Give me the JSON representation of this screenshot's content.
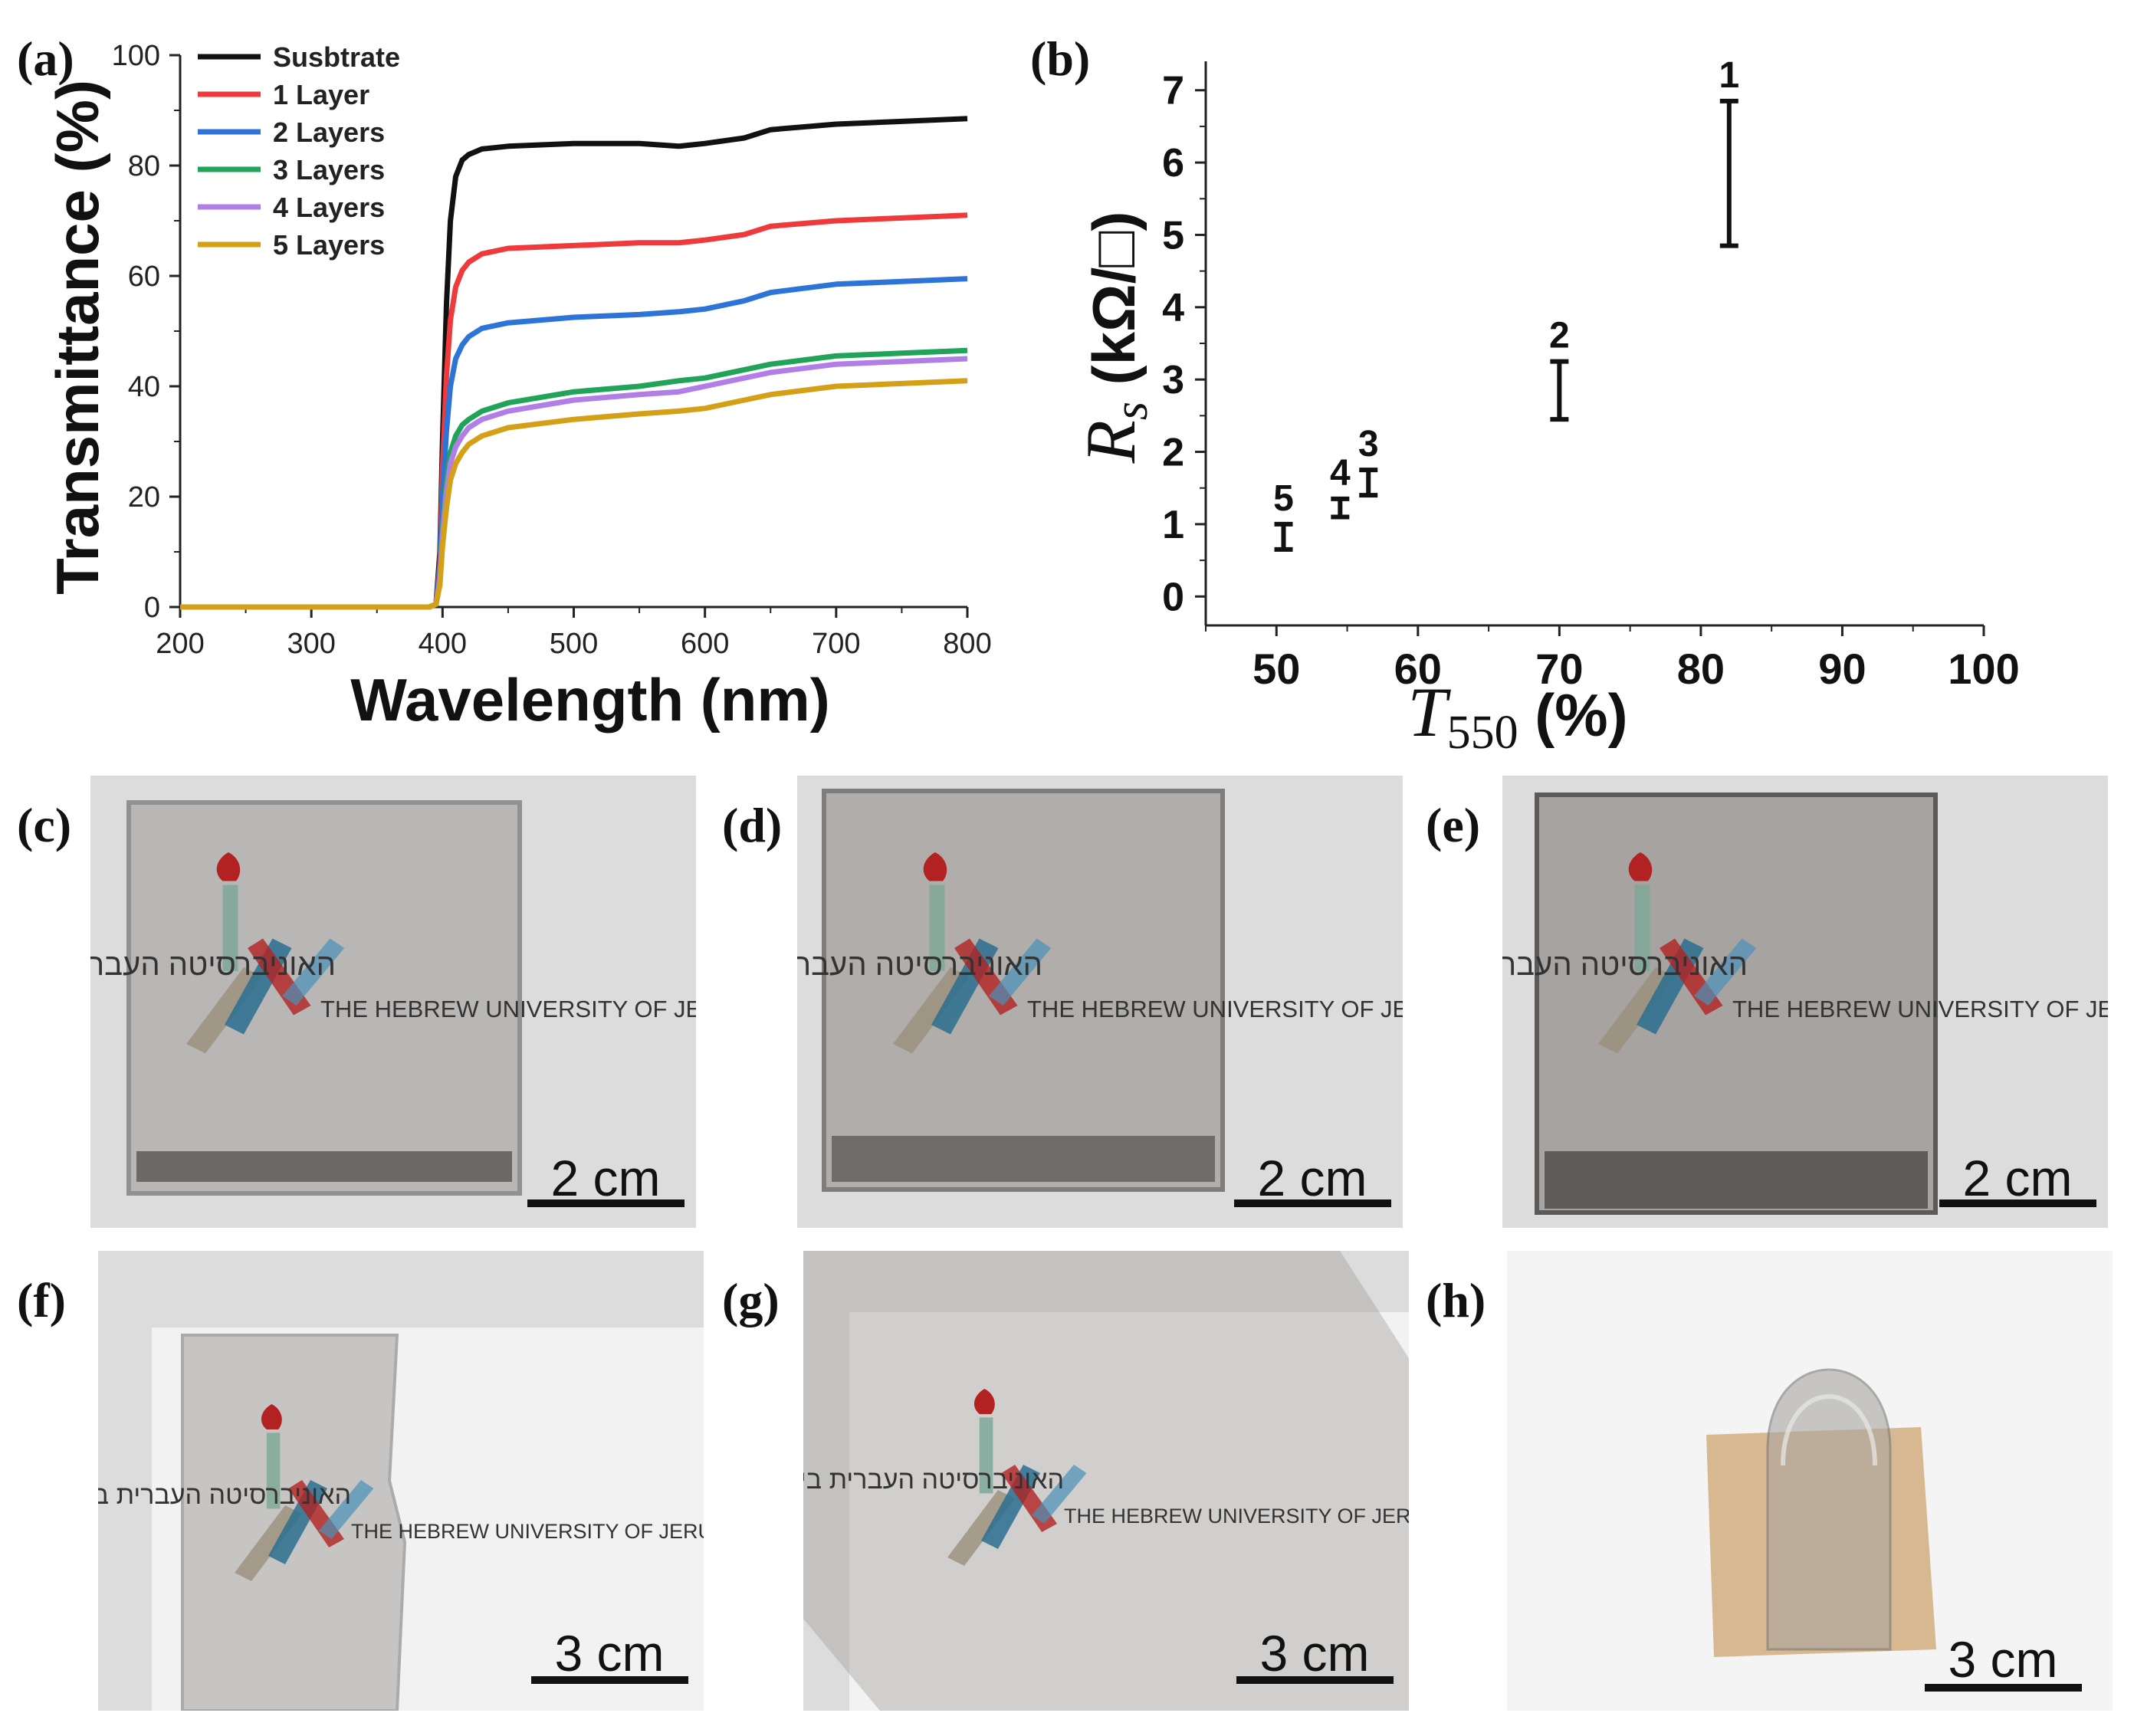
{
  "chart_data": [
    {
      "panel": "(a)",
      "type": "line",
      "xlabel": "Wavelength (nm)",
      "ylabel": "Transmittance (%)",
      "xlim": [
        200,
        800
      ],
      "ylim": [
        0,
        100
      ],
      "xticks": [
        "200",
        "300",
        "400",
        "500",
        "600",
        "700",
        "800"
      ],
      "yticks": [
        "0",
        "20",
        "40",
        "60",
        "80",
        "100"
      ],
      "legend_position": "top-left",
      "x": [
        200,
        390,
        395,
        398,
        400,
        403,
        406,
        410,
        415,
        420,
        430,
        450,
        500,
        550,
        580,
        600,
        630,
        650,
        700,
        750,
        800
      ],
      "series": [
        {
          "name": "Susbtrate",
          "color": "#111111",
          "values": [
            0,
            0,
            0.5,
            10,
            30,
            55,
            70,
            78,
            81,
            82,
            83,
            83.5,
            84,
            84,
            83.5,
            84,
            85,
            86.5,
            87.5,
            88,
            88.5
          ]
        },
        {
          "name": "1 Layer",
          "color": "#ee3a3a",
          "values": [
            0,
            0,
            0.5,
            8,
            25,
            42,
            52,
            58,
            61,
            62.5,
            64,
            65,
            65.5,
            66,
            66,
            66.5,
            67.5,
            69,
            70,
            70.5,
            71
          ]
        },
        {
          "name": "2 Layers",
          "color": "#2c74d8",
          "values": [
            0,
            0,
            0.5,
            7,
            20,
            32,
            40,
            45,
            47.5,
            49,
            50.5,
            51.5,
            52.5,
            53,
            53.5,
            54,
            55.5,
            57,
            58.5,
            59,
            59.5
          ]
        },
        {
          "name": "3 Layers",
          "color": "#22a35a",
          "values": [
            0,
            0,
            0.5,
            5,
            14,
            23,
            28,
            31,
            33,
            34,
            35.5,
            37,
            39,
            40,
            41,
            41.5,
            43,
            44,
            45.5,
            46,
            46.5
          ]
        },
        {
          "name": "4 Layers",
          "color": "#b07ee6",
          "values": [
            0,
            0,
            0.5,
            5,
            13,
            21,
            26,
            29,
            31,
            32.5,
            34,
            35.5,
            37.5,
            38.5,
            39,
            40,
            41.5,
            42.5,
            44,
            44.5,
            45
          ]
        },
        {
          "name": "5 Layers",
          "color": "#d4a017",
          "values": [
            0,
            0,
            0.5,
            4,
            11,
            18,
            23,
            26,
            28,
            29.5,
            31,
            32.5,
            34,
            35,
            35.5,
            36,
            37.5,
            38.5,
            40,
            40.5,
            41
          ]
        }
      ]
    },
    {
      "panel": "(b)",
      "type": "scatter",
      "error_bars": true,
      "xlabel_symbol": "T",
      "xlabel_subscript": "550",
      "xlabel_unit": " (%)",
      "ylabel_symbol": "R",
      "ylabel_subscript": "s",
      "ylabel_unit": " (kΩ/□)",
      "xlim": [
        45,
        100
      ],
      "ylim": [
        -0.4,
        7.4
      ],
      "xticks": [
        "50",
        "60",
        "70",
        "80",
        "90",
        "100"
      ],
      "yticks": [
        "0",
        "1",
        "2",
        "3",
        "4",
        "5",
        "6",
        "7"
      ],
      "points": [
        {
          "label": "5",
          "x": 50.5,
          "y_low": 0.65,
          "y_high": 1.0
        },
        {
          "label": "4",
          "x": 54.5,
          "y_low": 1.1,
          "y_high": 1.35
        },
        {
          "label": "3",
          "x": 56.5,
          "y_low": 1.4,
          "y_high": 1.75
        },
        {
          "label": "2",
          "x": 70,
          "y_low": 2.45,
          "y_high": 3.25
        },
        {
          "label": "1",
          "x": 82,
          "y_low": 4.85,
          "y_high": 6.85
        }
      ]
    }
  ],
  "panels": {
    "a": "(a)",
    "b": "(b)",
    "c": "(c)",
    "d": "(d)",
    "e": "(e)",
    "f": "(f)",
    "g": "(g)",
    "h": "(h)"
  },
  "photos": {
    "scale_2cm": "2 cm",
    "scale_3cm": "3 cm",
    "logo_hebrew": "האוניברסיטה העברית בירושלים",
    "logo_english": "THE HEBREW UNIVERSITY OF JERUSALEM",
    "photo_bg": "#dcdcdc",
    "glass_tint": "#9e9a96"
  }
}
